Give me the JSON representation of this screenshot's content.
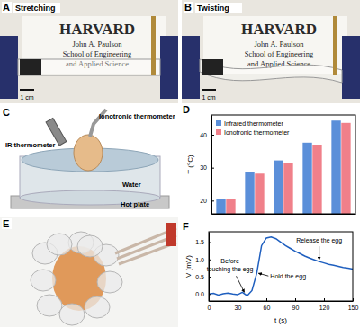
{
  "figure": {
    "panels": [
      {
        "label": "A",
        "caption": "Stretching",
        "sign_lines": [
          "HARVARD",
          "John A. Paulson",
          "School of Engineering",
          "and Applied Science"
        ],
        "scale_bar": "1 cm"
      },
      {
        "label": "B",
        "caption": "Twisting",
        "sign_lines": [
          "HARVARD",
          "John A. Paulson",
          "School of Engineering",
          "and Applied Science"
        ],
        "scale_bar": "1 cm"
      },
      {
        "label": "C",
        "labels": [
          "Ionotronic thermometer",
          "IR thermometer",
          "Water",
          "Hot plate"
        ]
      },
      {
        "label": "E"
      }
    ]
  },
  "chart_data": [
    {
      "type": "bar",
      "panel": "D",
      "ylabel": "T (°C)",
      "categories": [
        null,
        null,
        null,
        null,
        null
      ],
      "series": [
        {
          "name": "Infrared thermometer",
          "color": "#5b8fd9",
          "values": [
            20.5,
            28.8,
            32.2,
            37.6,
            44.3
          ]
        },
        {
          "name": "Ionotronic thermometer",
          "color": "#f0808a",
          "values": [
            20.6,
            28.2,
            31.4,
            37.0,
            43.6
          ]
        }
      ],
      "ylim": [
        16,
        46
      ],
      "yticks": [
        20,
        30,
        40
      ],
      "grid": false,
      "legend": "upper left",
      "tick_labels": "y"
    },
    {
      "type": "line",
      "panel": "F",
      "xlabel": "t (s)",
      "ylabel": "V (mV)",
      "x": [
        0,
        5,
        10,
        15,
        20,
        25,
        30,
        35,
        40,
        45,
        50,
        55,
        60,
        65,
        70,
        75,
        80,
        85,
        90,
        95,
        100,
        105,
        110,
        115,
        120,
        125,
        130,
        135,
        140,
        145,
        150
      ],
      "values": [
        0.0,
        0.02,
        -0.03,
        0.01,
        0.03,
        0.0,
        -0.02,
        0.05,
        -0.05,
        0.1,
        0.6,
        1.4,
        1.62,
        1.65,
        1.6,
        1.5,
        1.4,
        1.32,
        1.24,
        1.17,
        1.1,
        1.04,
        0.99,
        0.94,
        0.9,
        0.86,
        0.83,
        0.8,
        0.77,
        0.75,
        0.72
      ],
      "color": "#1f5fbf",
      "xlim": [
        0,
        150
      ],
      "xticks": [
        0,
        30,
        60,
        90,
        120,
        150
      ],
      "ylim": [
        -0.2,
        1.8
      ],
      "yticks": [
        {
          "value": 0,
          "label": "0.0"
        },
        {
          "value": 0.5,
          "label": "0.5"
        },
        {
          "value": 1,
          "label": "1.0"
        },
        {
          "value": 1.5,
          "label": "1.5"
        }
      ],
      "grid": false,
      "annotations": [
        {
          "text": "Before touching the egg",
          "x": 38,
          "y": 0.0
        },
        {
          "text": "Hold the egg",
          "x": 50,
          "y": 0.6
        },
        {
          "text": "Release the egg",
          "x": 115,
          "y": 0.94
        }
      ]
    }
  ]
}
